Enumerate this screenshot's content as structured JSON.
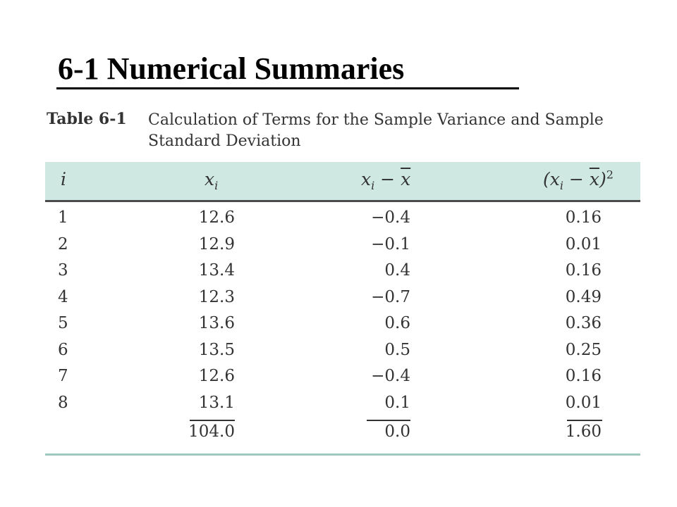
{
  "slide": {
    "title": "6-1 Numerical Summaries"
  },
  "table": {
    "label": "Table 6-1",
    "caption_line1": "Calculation of Terms for the Sample Variance and Sample",
    "caption_line2": "Standard Deviation",
    "headers": {
      "i": "i",
      "xi": "x",
      "xi_sub": "i",
      "dev_x": "x",
      "dev_sub": "i",
      "dev_minus": " − ",
      "dev_xbar": "x",
      "sq_open": "(x",
      "sq_sub": "i",
      "sq_minus": " − ",
      "sq_xbar": "x",
      "sq_close": ")",
      "sq_exp": "2"
    },
    "rows": [
      {
        "i": "1",
        "x": "12.6",
        "dev": "−0.4",
        "sq": "0.16"
      },
      {
        "i": "2",
        "x": "12.9",
        "dev": "−0.1",
        "sq": "0.01"
      },
      {
        "i": "3",
        "x": "13.4",
        "dev": "0.4",
        "sq": "0.16"
      },
      {
        "i": "4",
        "x": "12.3",
        "dev": "−0.7",
        "sq": "0.49"
      },
      {
        "i": "5",
        "x": "13.6",
        "dev": "0.6",
        "sq": "0.36"
      },
      {
        "i": "6",
        "x": "13.5",
        "dev": "0.5",
        "sq": "0.25"
      },
      {
        "i": "7",
        "x": "12.6",
        "dev": "−0.4",
        "sq": "0.16"
      },
      {
        "i": "8",
        "x": "13.1",
        "dev": "0.1",
        "sq": "0.01"
      }
    ],
    "totals": {
      "x": "104.0",
      "dev": "0.0",
      "sq": "1.60"
    },
    "colors": {
      "header_band": "#cfe8e2",
      "bottom_rule": "#9fc9bf",
      "text": "#333333"
    }
  }
}
